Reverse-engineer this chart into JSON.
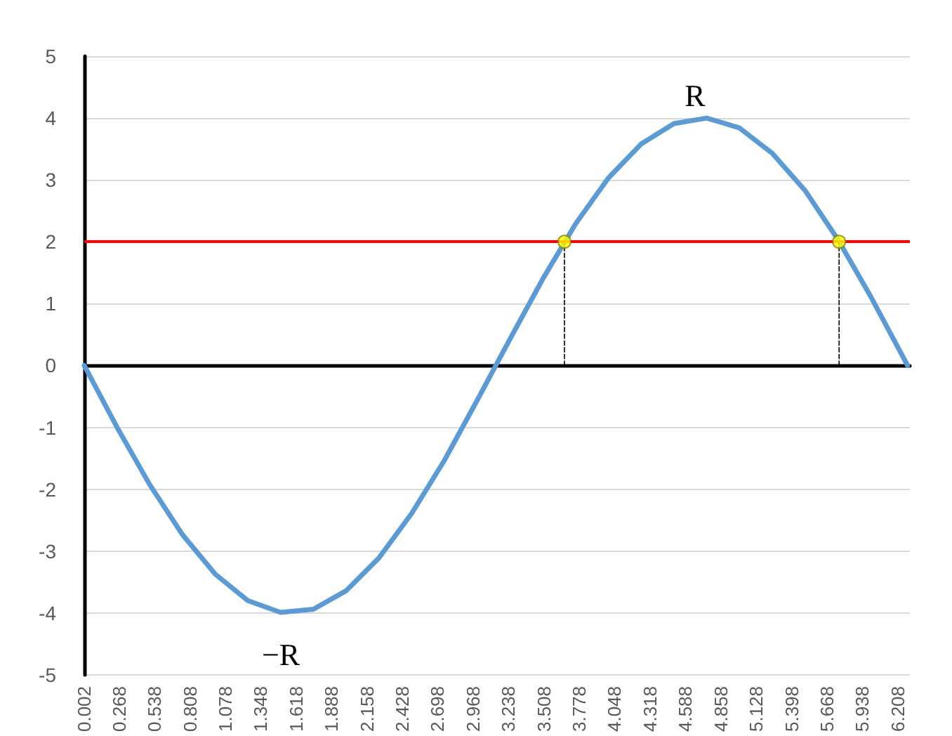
{
  "chart_data": {
    "type": "line",
    "xlim": [
      0.002,
      6.3
    ],
    "xticks": [
      0.002,
      0.268,
      0.538,
      0.808,
      1.078,
      1.348,
      1.618,
      1.888,
      2.158,
      2.428,
      2.698,
      2.968,
      3.238,
      3.508,
      3.778,
      4.048,
      4.318,
      4.588,
      4.858,
      5.128,
      5.398,
      5.668,
      5.938,
      6.208
    ],
    "ylim": [
      -5,
      5
    ],
    "yticks": [
      -5,
      -4,
      -3,
      -2,
      -1,
      0,
      1,
      2,
      3,
      4,
      5
    ],
    "grid": "y",
    "series": [
      {
        "color": "#5b9bd5",
        "marker": "none",
        "line_style": "solid",
        "x": [
          0.002,
          0.25,
          0.5,
          0.75,
          1.0,
          1.25,
          1.5,
          1.75,
          2.0,
          2.25,
          2.5,
          2.75,
          3.0,
          3.25,
          3.5,
          3.75,
          4.0,
          4.25,
          4.5,
          4.75,
          5.0,
          5.25,
          5.5,
          5.75,
          6.0,
          6.25,
          6.283
        ],
        "values": [
          0,
          -0.99,
          -1.92,
          -2.73,
          -3.37,
          -3.8,
          -3.99,
          -3.94,
          -3.64,
          -3.11,
          -2.39,
          -1.53,
          -0.56,
          0.43,
          1.4,
          2.29,
          3.03,
          3.58,
          3.91,
          4.0,
          3.84,
          3.43,
          2.83,
          2.04,
          1.12,
          0.13,
          0
        ]
      },
      {
        "type": "line",
        "color": "#000000",
        "marker": "none",
        "line_style": "dashed",
        "x": [
          3.665,
          3.665
        ],
        "values": [
          0,
          2
        ]
      },
      {
        "type": "line",
        "color": "#000000",
        "marker": "none",
        "line_style": "dashed",
        "x": [
          5.76,
          5.76
        ],
        "values": [
          0,
          2
        ]
      },
      {
        "type": "scatter",
        "color": "#ffff00",
        "marker": "circle",
        "x": [
          3.665,
          5.76
        ],
        "values": [
          2,
          2
        ]
      }
    ],
    "ref_lines": [
      {
        "axis": "y",
        "value": 2,
        "color": "#ff0000",
        "line_style": "solid"
      }
    ],
    "annotations": [
      "R",
      "−R"
    ]
  }
}
